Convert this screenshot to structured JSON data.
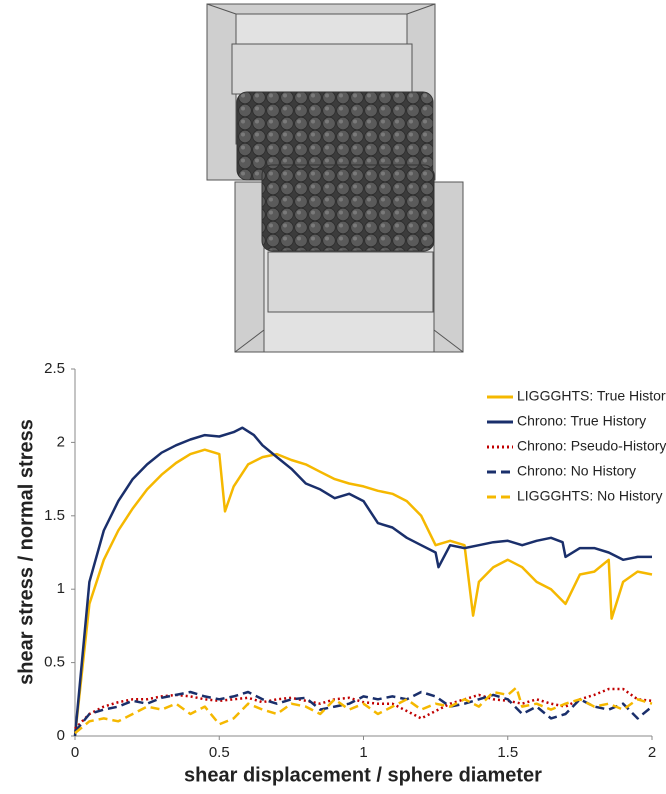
{
  "chart_data": {
    "type": "line",
    "xlabel": "shear displacement / sphere diameter",
    "ylabel": "shear stress / normal stress",
    "xlim": [
      0,
      2
    ],
    "xticks": [
      0,
      0.5,
      1,
      1.5,
      2
    ],
    "ylim": [
      0,
      2.5
    ],
    "yticks": [
      0,
      0.5,
      1,
      1.5,
      2,
      2.5
    ],
    "grid": false,
    "legend": "upper right",
    "series": [
      {
        "name": "LIGGGHTS: True History",
        "color": "#f5b800",
        "style": "solid",
        "x": [
          0,
          0.05,
          0.1,
          0.15,
          0.2,
          0.25,
          0.3,
          0.35,
          0.4,
          0.45,
          0.5,
          0.52,
          0.55,
          0.6,
          0.65,
          0.7,
          0.75,
          0.8,
          0.85,
          0.9,
          0.95,
          1.0,
          1.05,
          1.1,
          1.15,
          1.2,
          1.25,
          1.3,
          1.35,
          1.38,
          1.4,
          1.45,
          1.5,
          1.55,
          1.6,
          1.65,
          1.7,
          1.75,
          1.8,
          1.85,
          1.86,
          1.9,
          1.95,
          2.0
        ],
        "values": [
          0,
          0.9,
          1.2,
          1.4,
          1.55,
          1.68,
          1.78,
          1.86,
          1.92,
          1.95,
          1.92,
          1.53,
          1.7,
          1.85,
          1.9,
          1.92,
          1.88,
          1.85,
          1.8,
          1.75,
          1.72,
          1.7,
          1.67,
          1.65,
          1.6,
          1.5,
          1.3,
          1.33,
          1.3,
          0.82,
          1.05,
          1.15,
          1.2,
          1.15,
          1.05,
          1.0,
          0.9,
          1.1,
          1.12,
          1.2,
          0.8,
          1.05,
          1.12,
          1.1
        ]
      },
      {
        "name": "Chrono: True History",
        "color": "#1a2f6b",
        "style": "solid",
        "x": [
          0,
          0.05,
          0.1,
          0.15,
          0.2,
          0.25,
          0.3,
          0.35,
          0.4,
          0.45,
          0.5,
          0.55,
          0.58,
          0.62,
          0.65,
          0.7,
          0.75,
          0.8,
          0.85,
          0.9,
          0.95,
          1.0,
          1.05,
          1.1,
          1.15,
          1.2,
          1.25,
          1.26,
          1.3,
          1.35,
          1.4,
          1.45,
          1.5,
          1.55,
          1.6,
          1.65,
          1.69,
          1.7,
          1.75,
          1.8,
          1.85,
          1.9,
          1.95,
          2.0
        ],
        "values": [
          0,
          1.05,
          1.4,
          1.6,
          1.75,
          1.85,
          1.93,
          1.98,
          2.02,
          2.05,
          2.04,
          2.07,
          2.1,
          2.05,
          1.98,
          1.9,
          1.82,
          1.72,
          1.68,
          1.62,
          1.65,
          1.6,
          1.45,
          1.42,
          1.35,
          1.3,
          1.25,
          1.15,
          1.3,
          1.28,
          1.3,
          1.32,
          1.33,
          1.3,
          1.33,
          1.35,
          1.32,
          1.22,
          1.28,
          1.28,
          1.25,
          1.2,
          1.22,
          1.22
        ]
      },
      {
        "name": "Chrono: Pseudo-History",
        "color": "#c00000",
        "style": "dotted",
        "x": [
          0,
          0.05,
          0.1,
          0.15,
          0.2,
          0.25,
          0.3,
          0.35,
          0.4,
          0.45,
          0.5,
          0.55,
          0.6,
          0.65,
          0.7,
          0.75,
          0.8,
          0.85,
          0.9,
          0.95,
          1.0,
          1.05,
          1.1,
          1.15,
          1.2,
          1.25,
          1.3,
          1.35,
          1.4,
          1.45,
          1.5,
          1.55,
          1.6,
          1.65,
          1.7,
          1.75,
          1.8,
          1.85,
          1.9,
          1.95,
          2.0
        ],
        "values": [
          0.05,
          0.15,
          0.2,
          0.23,
          0.25,
          0.25,
          0.27,
          0.28,
          0.27,
          0.25,
          0.24,
          0.25,
          0.26,
          0.23,
          0.25,
          0.26,
          0.24,
          0.22,
          0.25,
          0.26,
          0.23,
          0.22,
          0.22,
          0.17,
          0.12,
          0.17,
          0.22,
          0.25,
          0.28,
          0.25,
          0.24,
          0.22,
          0.25,
          0.22,
          0.2,
          0.25,
          0.28,
          0.32,
          0.32,
          0.25,
          0.24
        ]
      },
      {
        "name": "Chrono: No History",
        "color": "#1a2f6b",
        "style": "dashed",
        "x": [
          0,
          0.05,
          0.1,
          0.15,
          0.2,
          0.25,
          0.3,
          0.35,
          0.4,
          0.45,
          0.5,
          0.55,
          0.6,
          0.65,
          0.7,
          0.75,
          0.8,
          0.85,
          0.9,
          0.95,
          1.0,
          1.05,
          1.1,
          1.15,
          1.2,
          1.25,
          1.3,
          1.35,
          1.4,
          1.45,
          1.5,
          1.55,
          1.6,
          1.65,
          1.7,
          1.75,
          1.8,
          1.85,
          1.9,
          1.95,
          2.0
        ],
        "values": [
          0.03,
          0.15,
          0.18,
          0.2,
          0.24,
          0.22,
          0.26,
          0.28,
          0.3,
          0.27,
          0.25,
          0.27,
          0.3,
          0.25,
          0.22,
          0.25,
          0.26,
          0.18,
          0.2,
          0.22,
          0.27,
          0.25,
          0.27,
          0.25,
          0.3,
          0.27,
          0.2,
          0.22,
          0.25,
          0.28,
          0.25,
          0.15,
          0.2,
          0.12,
          0.15,
          0.25,
          0.2,
          0.18,
          0.22,
          0.12,
          0.2
        ]
      },
      {
        "name": "LIGGGHTS: No History",
        "color": "#f5b800",
        "style": "dashed",
        "x": [
          0,
          0.05,
          0.1,
          0.15,
          0.2,
          0.25,
          0.3,
          0.35,
          0.4,
          0.45,
          0.5,
          0.55,
          0.6,
          0.65,
          0.7,
          0.75,
          0.8,
          0.85,
          0.9,
          0.95,
          1.0,
          1.05,
          1.1,
          1.15,
          1.2,
          1.25,
          1.3,
          1.35,
          1.4,
          1.45,
          1.5,
          1.53,
          1.55,
          1.6,
          1.65,
          1.7,
          1.75,
          1.8,
          1.85,
          1.9,
          1.95,
          2.0
        ],
        "values": [
          0.02,
          0.1,
          0.12,
          0.1,
          0.15,
          0.2,
          0.18,
          0.22,
          0.15,
          0.2,
          0.08,
          0.12,
          0.22,
          0.18,
          0.15,
          0.22,
          0.2,
          0.15,
          0.25,
          0.18,
          0.22,
          0.15,
          0.2,
          0.25,
          0.18,
          0.22,
          0.2,
          0.25,
          0.2,
          0.3,
          0.28,
          0.33,
          0.2,
          0.22,
          0.18,
          0.22,
          0.25,
          0.2,
          0.22,
          0.18,
          0.25,
          0.22
        ]
      }
    ]
  }
}
